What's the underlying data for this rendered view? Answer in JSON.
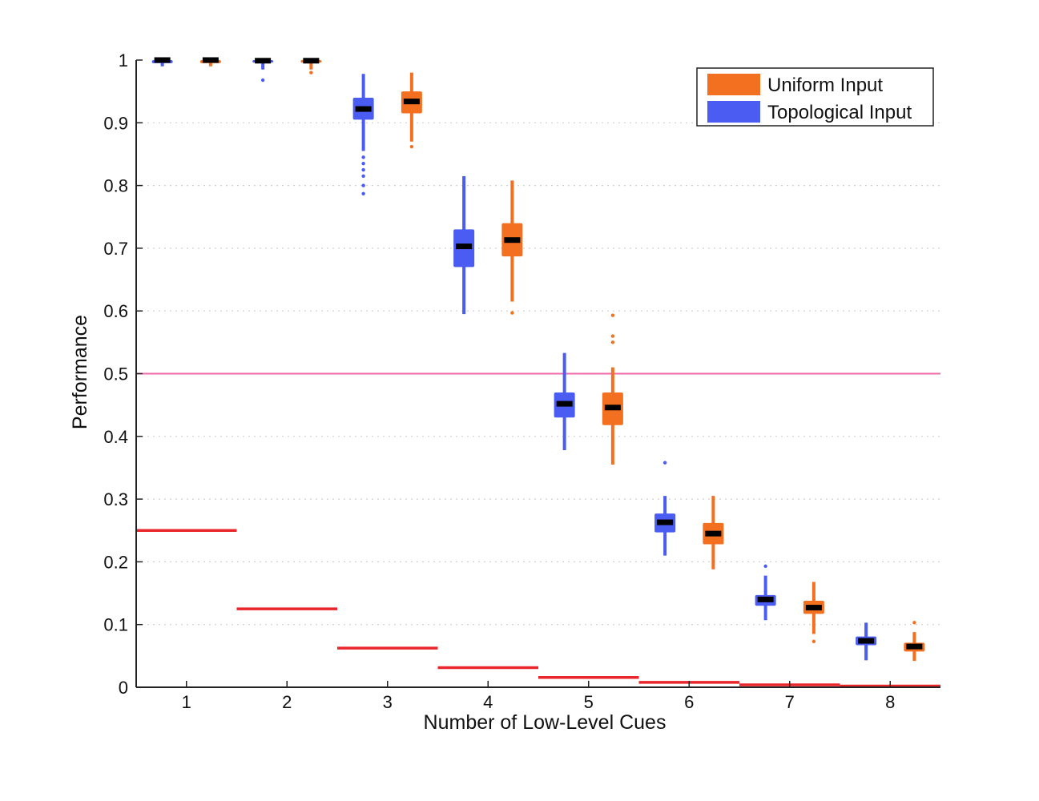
{
  "chart_data": {
    "type": "box",
    "title": "",
    "xlabel": "Number of Low-Level Cues",
    "ylabel": "Performance",
    "x_ticks": [
      "1",
      "2",
      "3",
      "4",
      "5",
      "6",
      "7",
      "8"
    ],
    "y_ticks": [
      "0",
      "0.1",
      "0.2",
      "0.3",
      "0.4",
      "0.5",
      "0.6",
      "0.7",
      "0.8",
      "0.9",
      "1"
    ],
    "xlim": [
      0.5,
      8.5
    ],
    "ylim": [
      0,
      1
    ],
    "grid": "dotted horizontal",
    "legend_position": "top-right",
    "series": [
      {
        "name": "Uniform Input",
        "color": "#f37021",
        "boxes": [
          {
            "x": 1,
            "whisker_low": 0.99,
            "q1": 0.995,
            "median": 1.0,
            "q3": 1.0,
            "whisker_high": 1.0,
            "outliers": []
          },
          {
            "x": 2,
            "whisker_low": 0.985,
            "q1": 0.996,
            "median": 0.999,
            "q3": 1.0,
            "whisker_high": 1.0,
            "outliers": [
              0.98
            ]
          },
          {
            "x": 3,
            "whisker_low": 0.87,
            "q1": 0.915,
            "median": 0.934,
            "q3": 0.95,
            "whisker_high": 0.98,
            "outliers": [
              0.862
            ]
          },
          {
            "x": 4,
            "whisker_low": 0.615,
            "q1": 0.687,
            "median": 0.713,
            "q3": 0.74,
            "whisker_high": 0.808,
            "outliers": [
              0.597
            ]
          },
          {
            "x": 5,
            "whisker_low": 0.355,
            "q1": 0.418,
            "median": 0.446,
            "q3": 0.47,
            "whisker_high": 0.51,
            "outliers": [
              0.55,
              0.56,
              0.593
            ]
          },
          {
            "x": 6,
            "whisker_low": 0.188,
            "q1": 0.228,
            "median": 0.245,
            "q3": 0.262,
            "whisker_high": 0.305,
            "outliers": []
          },
          {
            "x": 7,
            "whisker_low": 0.085,
            "q1": 0.117,
            "median": 0.127,
            "q3": 0.138,
            "whisker_high": 0.168,
            "outliers": [
              0.073
            ]
          },
          {
            "x": 8,
            "whisker_low": 0.042,
            "q1": 0.057,
            "median": 0.065,
            "q3": 0.071,
            "whisker_high": 0.088,
            "outliers": [
              0.103
            ]
          }
        ]
      },
      {
        "name": "Topological Input",
        "color": "#4b5cf2",
        "boxes": [
          {
            "x": 1,
            "whisker_low": 0.99,
            "q1": 0.995,
            "median": 1.0,
            "q3": 1.0,
            "whisker_high": 1.0,
            "outliers": []
          },
          {
            "x": 2,
            "whisker_low": 0.985,
            "q1": 0.996,
            "median": 0.999,
            "q3": 1.0,
            "whisker_high": 1.0,
            "outliers": [
              0.968
            ]
          },
          {
            "x": 3,
            "whisker_low": 0.855,
            "q1": 0.905,
            "median": 0.922,
            "q3": 0.94,
            "whisker_high": 0.978,
            "outliers": [
              0.8,
              0.815,
              0.825,
              0.835,
              0.845,
              0.787
            ]
          },
          {
            "x": 4,
            "whisker_low": 0.595,
            "q1": 0.67,
            "median": 0.703,
            "q3": 0.73,
            "whisker_high": 0.815,
            "outliers": []
          },
          {
            "x": 5,
            "whisker_low": 0.378,
            "q1": 0.43,
            "median": 0.452,
            "q3": 0.47,
            "whisker_high": 0.533,
            "outliers": []
          },
          {
            "x": 6,
            "whisker_low": 0.21,
            "q1": 0.247,
            "median": 0.263,
            "q3": 0.277,
            "whisker_high": 0.305,
            "outliers": [
              0.358
            ]
          },
          {
            "x": 7,
            "whisker_low": 0.107,
            "q1": 0.13,
            "median": 0.14,
            "q3": 0.147,
            "whisker_high": 0.178,
            "outliers": [
              0.193
            ]
          },
          {
            "x": 8,
            "whisker_low": 0.043,
            "q1": 0.067,
            "median": 0.074,
            "q3": 0.081,
            "whisker_high": 0.103,
            "outliers": []
          }
        ]
      }
    ],
    "reference_line": {
      "y": 0.5,
      "color": "#f06aa8"
    },
    "chance_levels": {
      "color": "#e8262b",
      "segments": [
        {
          "x_from": 0.5,
          "x_to": 1.5,
          "y": 0.25
        },
        {
          "x_from": 1.5,
          "x_to": 2.5,
          "y": 0.125
        },
        {
          "x_from": 2.5,
          "x_to": 3.5,
          "y": 0.0625
        },
        {
          "x_from": 3.5,
          "x_to": 4.5,
          "y": 0.03125
        },
        {
          "x_from": 4.5,
          "x_to": 5.5,
          "y": 0.015625
        },
        {
          "x_from": 5.5,
          "x_to": 6.5,
          "y": 0.0078125
        },
        {
          "x_from": 6.5,
          "x_to": 7.5,
          "y": 0.00390625
        },
        {
          "x_from": 7.5,
          "x_to": 8.5,
          "y": 0.001953125
        }
      ]
    },
    "legend": [
      {
        "label": "Uniform Input",
        "color": "#f37021"
      },
      {
        "label": "Topological Input",
        "color": "#4b5cf2"
      }
    ]
  }
}
